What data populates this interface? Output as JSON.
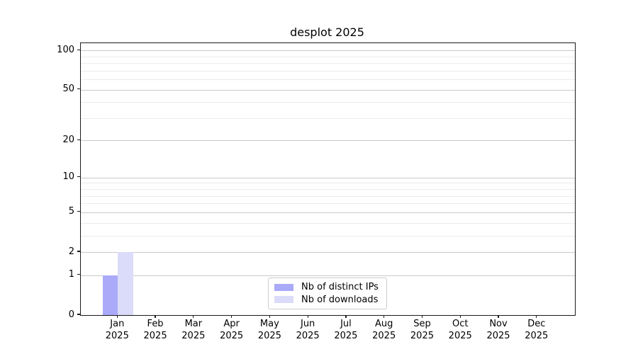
{
  "chart_data": {
    "type": "bar",
    "title": "desplot 2025",
    "categories": [
      "Jan 2025",
      "Feb 2025",
      "Mar 2025",
      "Apr 2025",
      "May 2025",
      "Jun 2025",
      "Jul 2025",
      "Aug 2025",
      "Sep 2025",
      "Oct 2025",
      "Nov 2025",
      "Dec 2025"
    ],
    "series": [
      {
        "name": "Nb of distinct IPs",
        "color": "#aaaaf9",
        "values": [
          1,
          0,
          0,
          0,
          0,
          0,
          0,
          0,
          0,
          0,
          0,
          0
        ]
      },
      {
        "name": "Nb of downloads",
        "color": "#dbdbfa",
        "values": [
          2,
          0,
          0,
          0,
          0,
          0,
          0,
          0,
          0,
          0,
          0,
          0
        ]
      }
    ],
    "xlabel": "",
    "ylabel": "",
    "yscale": "log1p",
    "ylim": [
      0,
      113.5
    ],
    "yticks": [
      0,
      1,
      2,
      5,
      10,
      20,
      50,
      100
    ],
    "minor_yticks": [
      3,
      4,
      6,
      7,
      8,
      9,
      30,
      40,
      60,
      70,
      80,
      90
    ],
    "grid": true,
    "legend_position": "lower center",
    "colors": {
      "major_grid": "#c9c9c9",
      "minor_grid": "#ececec",
      "spine": "#1a1a1a",
      "text": "#000000",
      "legend_border": "#cccccc",
      "background": "#ffffff"
    }
  }
}
